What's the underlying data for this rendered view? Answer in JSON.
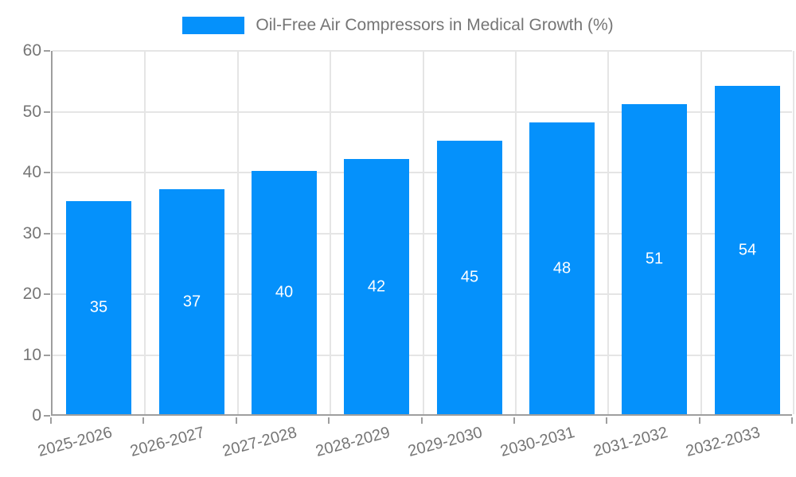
{
  "legend": {
    "label": "Oil-Free Air Compressors in Medical Growth (%)"
  },
  "chart_data": {
    "type": "bar",
    "title": "Oil-Free Air Compressors in Medical Growth (%)",
    "categories": [
      "2025-2026",
      "2026-2027",
      "2027-2028",
      "2028-2029",
      "2029-2030",
      "2030-2031",
      "2031-2032",
      "2032-2033"
    ],
    "values": [
      35,
      37,
      40,
      42,
      45,
      48,
      51,
      54
    ],
    "series_name": "Oil-Free Air Compressors in Medical Growth (%)",
    "xlabel": "",
    "ylabel": "",
    "ylim": [
      0,
      60
    ],
    "ytick_interval": 10,
    "ytick_labels": [
      "0",
      "10",
      "20",
      "30",
      "40",
      "50",
      "60"
    ],
    "grid": true,
    "legend_position": "top-center",
    "bar_label_position": "center-inside"
  },
  "colors": {
    "bar": "#0591fb",
    "value_label": "#ffffff",
    "grid": "#e5e5e5",
    "axis": "#9e9e9e",
    "tick_text": "#757575",
    "background": "#ffffff"
  }
}
